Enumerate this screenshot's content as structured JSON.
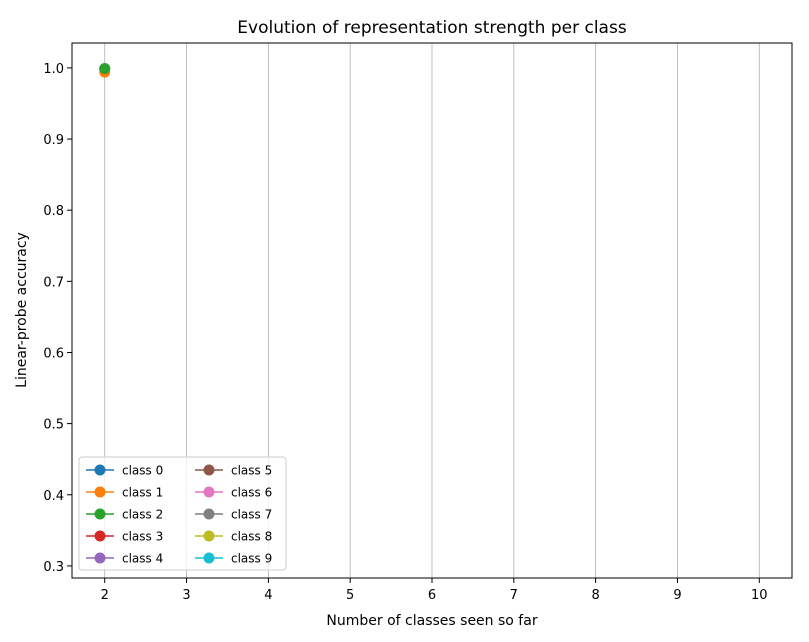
{
  "chart_data": {
    "type": "line",
    "title": "Evolution of representation strength per class",
    "xlabel": "Number of classes seen so far",
    "ylabel": "Linear-probe accuracy",
    "xlim": [
      1.6,
      10.4
    ],
    "ylim": [
      0.283,
      1.035
    ],
    "xticks": [
      2,
      3,
      4,
      5,
      6,
      7,
      8,
      9,
      10
    ],
    "yticks": [
      0.3,
      0.4,
      0.5,
      0.6,
      0.7,
      0.8,
      0.9,
      1.0
    ],
    "ytick_labels": [
      "0.3",
      "0.4",
      "0.5",
      "0.6",
      "0.7",
      "0.8",
      "0.9",
      "1.0"
    ],
    "grid": "x-only",
    "legend_position": "lower-left",
    "legend_columns": 2,
    "series": [
      {
        "name": "class 0",
        "color": "#1f77b4",
        "x": [
          2
        ],
        "y": [
          0.999
        ]
      },
      {
        "name": "class 1",
        "color": "#ff7f0e",
        "x": [
          2
        ],
        "y": [
          0.994
        ]
      },
      {
        "name": "class 2",
        "color": "#2ca02c",
        "x": [
          2
        ],
        "y": [
          0.999
        ]
      },
      {
        "name": "class 3",
        "color": "#d62728",
        "x": [],
        "y": []
      },
      {
        "name": "class 4",
        "color": "#9467bd",
        "x": [],
        "y": []
      },
      {
        "name": "class 5",
        "color": "#8c564b",
        "x": [],
        "y": []
      },
      {
        "name": "class 6",
        "color": "#e377c2",
        "x": [],
        "y": []
      },
      {
        "name": "class 7",
        "color": "#7f7f7f",
        "x": [],
        "y": []
      },
      {
        "name": "class 8",
        "color": "#bcbd22",
        "x": [],
        "y": []
      },
      {
        "name": "class 9",
        "color": "#17becf",
        "x": [],
        "y": []
      }
    ]
  }
}
